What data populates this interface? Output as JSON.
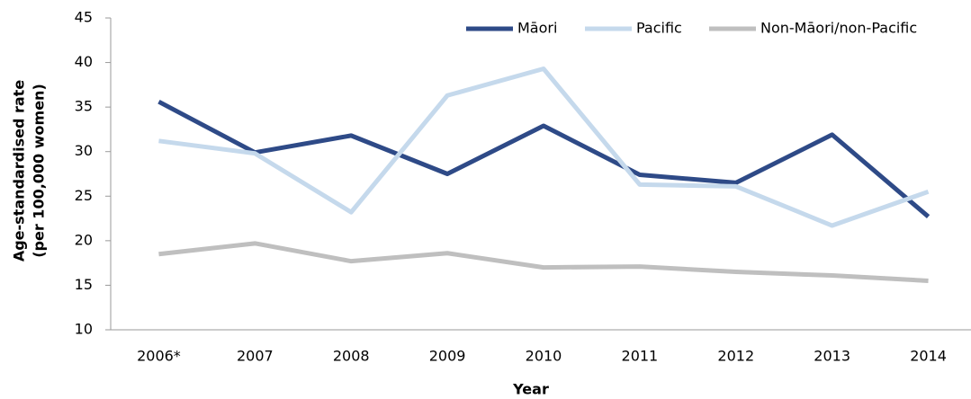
{
  "chart_data": {
    "type": "line",
    "xlabel": "Year",
    "ylabel": [
      "Age-standardised rate",
      "(per 100,000 women)"
    ],
    "categories": [
      "2006*",
      "2007",
      "2008",
      "2009",
      "2010",
      "2011",
      "2012",
      "2013",
      "2014"
    ],
    "series": [
      {
        "name": "Māori",
        "color": "#2e4a87",
        "values": [
          35.6,
          29.9,
          31.8,
          27.5,
          32.9,
          27.4,
          26.5,
          31.9,
          22.7
        ]
      },
      {
        "name": "Pacific",
        "color": "#c5d9ec",
        "values": [
          31.2,
          29.8,
          23.2,
          36.3,
          39.3,
          26.3,
          26.1,
          21.7,
          25.5
        ]
      },
      {
        "name": "Non-Māori/non-Pacific",
        "color": "#bfbfbf",
        "values": [
          18.5,
          19.7,
          17.7,
          18.6,
          17.0,
          17.1,
          16.5,
          16.1,
          15.5
        ]
      }
    ],
    "ylim": [
      10,
      45
    ],
    "yticks": [
      10,
      15,
      20,
      25,
      30,
      35,
      40,
      45
    ],
    "grid": false,
    "legend": "top-right"
  }
}
